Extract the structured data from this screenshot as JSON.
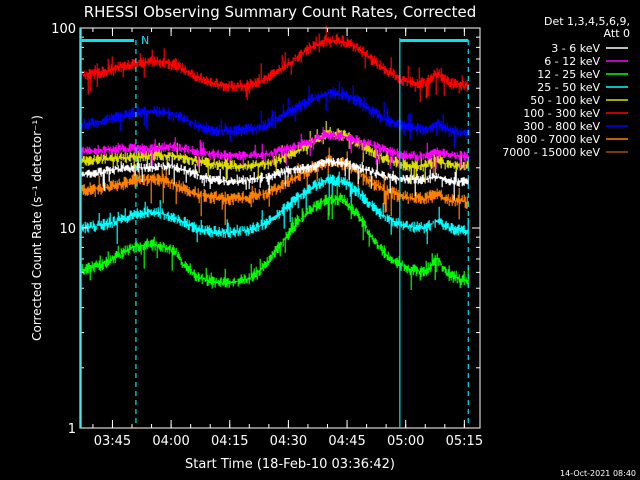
{
  "title": "RHESSI Observing Summary Count Rates, Corrected",
  "timestamp": "14-Oct-2021 08:40",
  "legend_header": [
    "Det 1,3,4,5,6,9,",
    "Att 0"
  ],
  "chart_data": {
    "type": "line",
    "title": "RHESSI Observing Summary Count Rates, Corrected",
    "xlabel": "Start Time (18-Feb-10 03:36:42)",
    "ylabel": "Corrected Count Rate (s⁻¹ detector⁻¹)",
    "y_scale": "log",
    "ylim": [
      1,
      100
    ],
    "y_ticks": [
      1,
      10,
      100
    ],
    "y_tick_labels": [
      "1",
      "10",
      "100"
    ],
    "xlim": [
      "03:36:42",
      "05:19:00"
    ],
    "x_ticks": [
      "03:45",
      "04:00",
      "04:15",
      "04:30",
      "04:45",
      "05:00",
      "05:15"
    ],
    "night_markers": {
      "times": [
        "03:51:00",
        "05:16:00"
      ],
      "color": "#00e5ee"
    },
    "bars": [
      {
        "from": "03:36:42",
        "to": "03:50:30",
        "label": "N"
      },
      {
        "from": "04:58:30",
        "to": "05:16:00",
        "label": ""
      }
    ],
    "series": [
      {
        "name": "3 - 6 keV",
        "color": "#ffffff",
        "width": 5,
        "points": [
          [
            "03:37",
            18.5
          ],
          [
            "03:42",
            19
          ],
          [
            "03:48",
            20
          ],
          [
            "03:54",
            20
          ],
          [
            "04:00",
            20.5
          ],
          [
            "04:05",
            19
          ],
          [
            "04:10",
            17.5
          ],
          [
            "04:15",
            17
          ],
          [
            "04:20",
            17.5
          ],
          [
            "04:25",
            18
          ],
          [
            "04:30",
            19.5
          ],
          [
            "04:35",
            20
          ],
          [
            "04:40",
            21.5
          ],
          [
            "04:45",
            21
          ],
          [
            "04:50",
            19.5
          ],
          [
            "04:55",
            18
          ],
          [
            "05:00",
            17.5
          ],
          [
            "05:05",
            17.5
          ],
          [
            "05:08",
            18
          ],
          [
            "05:12",
            17
          ],
          [
            "05:16",
            17
          ]
        ]
      },
      {
        "name": "6 - 12 keV",
        "color": "#ff00ff",
        "width": 5,
        "points": [
          [
            "03:37",
            24
          ],
          [
            "03:42",
            24.5
          ],
          [
            "03:48",
            25
          ],
          [
            "03:54",
            25
          ],
          [
            "04:00",
            25.5
          ],
          [
            "04:05",
            24.5
          ],
          [
            "04:10",
            23.5
          ],
          [
            "04:15",
            23
          ],
          [
            "04:20",
            23
          ],
          [
            "04:25",
            23.5
          ],
          [
            "04:30",
            25
          ],
          [
            "04:35",
            27
          ],
          [
            "04:40",
            29
          ],
          [
            "04:45",
            28.5
          ],
          [
            "04:50",
            26.5
          ],
          [
            "04:55",
            24.5
          ],
          [
            "05:00",
            23
          ],
          [
            "05:05",
            23
          ],
          [
            "05:08",
            24
          ],
          [
            "05:12",
            23
          ],
          [
            "05:16",
            23
          ]
        ]
      },
      {
        "name": "12 - 25 keV",
        "color": "#00ff00",
        "width": 6,
        "points": [
          [
            "03:37",
            6.2
          ],
          [
            "03:42",
            6.5
          ],
          [
            "03:46",
            7.2
          ],
          [
            "03:50",
            8
          ],
          [
            "03:54",
            8.3
          ],
          [
            "03:58",
            8.1
          ],
          [
            "04:01",
            7.6
          ],
          [
            "04:03",
            6.6
          ],
          [
            "04:06",
            5.8
          ],
          [
            "04:10",
            5.4
          ],
          [
            "04:15",
            5.3
          ],
          [
            "04:20",
            5.6
          ],
          [
            "04:24",
            6.5
          ],
          [
            "04:28",
            8.3
          ],
          [
            "04:32",
            10.5
          ],
          [
            "04:36",
            12.5
          ],
          [
            "04:40",
            14
          ],
          [
            "04:44",
            13.8
          ],
          [
            "04:48",
            11.5
          ],
          [
            "04:51",
            9.2
          ],
          [
            "04:55",
            7.3
          ],
          [
            "05:00",
            6.3
          ],
          [
            "05:05",
            6
          ],
          [
            "05:08",
            7
          ],
          [
            "05:11",
            5.8
          ],
          [
            "05:16",
            5.4
          ]
        ]
      },
      {
        "name": "25 - 50 keV",
        "color": "#00ffff",
        "width": 6,
        "points": [
          [
            "03:37",
            10
          ],
          [
            "03:42",
            10.3
          ],
          [
            "03:46",
            10.8
          ],
          [
            "03:50",
            11.5
          ],
          [
            "03:54",
            12
          ],
          [
            "03:58",
            11.8
          ],
          [
            "04:02",
            11
          ],
          [
            "04:06",
            10
          ],
          [
            "04:10",
            9.6
          ],
          [
            "04:15",
            9.5
          ],
          [
            "04:20",
            9.8
          ],
          [
            "04:24",
            10.5
          ],
          [
            "04:28",
            12
          ],
          [
            "04:32",
            14
          ],
          [
            "04:36",
            16
          ],
          [
            "04:40",
            17.5
          ],
          [
            "04:44",
            17
          ],
          [
            "04:48",
            15
          ],
          [
            "04:51",
            13
          ],
          [
            "04:55",
            11.2
          ],
          [
            "05:00",
            10.2
          ],
          [
            "05:05",
            10
          ],
          [
            "05:08",
            10.8
          ],
          [
            "05:11",
            10
          ],
          [
            "05:16",
            9.6
          ]
        ]
      },
      {
        "name": "50 - 100 keV",
        "color": "#dddd00",
        "width": 6,
        "points": [
          [
            "03:37",
            21.5
          ],
          [
            "03:42",
            22
          ],
          [
            "03:48",
            22.5
          ],
          [
            "03:54",
            23
          ],
          [
            "04:00",
            23
          ],
          [
            "04:05",
            22
          ],
          [
            "04:10",
            21
          ],
          [
            "04:15",
            20.5
          ],
          [
            "04:20",
            20.5
          ],
          [
            "04:25",
            21
          ],
          [
            "04:30",
            23
          ],
          [
            "04:35",
            26
          ],
          [
            "04:40",
            30
          ],
          [
            "04:45",
            29
          ],
          [
            "04:50",
            25
          ],
          [
            "04:55",
            22
          ],
          [
            "05:00",
            20.5
          ],
          [
            "05:05",
            20.5
          ],
          [
            "05:08",
            21.5
          ],
          [
            "05:12",
            20.5
          ],
          [
            "05:16",
            20.5
          ]
        ]
      },
      {
        "name": "100 - 300 keV",
        "color": "#ff0000",
        "width": 6,
        "points": [
          [
            "03:37",
            58
          ],
          [
            "03:42",
            60
          ],
          [
            "03:46",
            63
          ],
          [
            "03:50",
            66
          ],
          [
            "03:54",
            68
          ],
          [
            "03:58",
            67
          ],
          [
            "04:02",
            64
          ],
          [
            "04:06",
            58
          ],
          [
            "04:10",
            53
          ],
          [
            "04:15",
            51
          ],
          [
            "04:20",
            52
          ],
          [
            "04:24",
            55
          ],
          [
            "04:28",
            62
          ],
          [
            "04:32",
            71
          ],
          [
            "04:36",
            80
          ],
          [
            "04:40",
            87
          ],
          [
            "04:44",
            86
          ],
          [
            "04:48",
            79
          ],
          [
            "04:51",
            70
          ],
          [
            "04:55",
            61
          ],
          [
            "05:00",
            54
          ],
          [
            "05:05",
            53
          ],
          [
            "05:08",
            60
          ],
          [
            "05:11",
            53
          ],
          [
            "05:16",
            51
          ]
        ]
      },
      {
        "name": "300 - 800 keV",
        "color": "#0000ff",
        "width": 6,
        "points": [
          [
            "03:37",
            33
          ],
          [
            "03:42",
            34
          ],
          [
            "03:46",
            35.5
          ],
          [
            "03:50",
            37.5
          ],
          [
            "03:54",
            38.5
          ],
          [
            "03:58",
            38
          ],
          [
            "04:02",
            36
          ],
          [
            "04:06",
            33
          ],
          [
            "04:10",
            31
          ],
          [
            "04:15",
            30.5
          ],
          [
            "04:20",
            31
          ],
          [
            "04:24",
            32.5
          ],
          [
            "04:28",
            36
          ],
          [
            "04:32",
            40
          ],
          [
            "04:36",
            44
          ],
          [
            "04:40",
            47
          ],
          [
            "04:44",
            46.5
          ],
          [
            "04:48",
            43
          ],
          [
            "04:51",
            38.5
          ],
          [
            "04:55",
            34.5
          ],
          [
            "05:00",
            32
          ],
          [
            "05:05",
            31
          ],
          [
            "05:08",
            33.5
          ],
          [
            "05:11",
            30.5
          ],
          [
            "05:16",
            30
          ]
        ]
      },
      {
        "name": "800 - 7000 keV",
        "color": "#ff8000",
        "width": 7,
        "points": [
          [
            "03:37",
            15.5
          ],
          [
            "03:42",
            15.8
          ],
          [
            "03:46",
            16.3
          ],
          [
            "03:50",
            17
          ],
          [
            "03:54",
            17.5
          ],
          [
            "03:58",
            17.2
          ],
          [
            "04:02",
            16.3
          ],
          [
            "04:06",
            15
          ],
          [
            "04:10",
            14.2
          ],
          [
            "04:15",
            14
          ],
          [
            "04:20",
            14.2
          ],
          [
            "04:24",
            14.8
          ],
          [
            "04:28",
            16.2
          ],
          [
            "04:32",
            18
          ],
          [
            "04:36",
            20
          ],
          [
            "04:40",
            21.5
          ],
          [
            "04:44",
            21
          ],
          [
            "04:48",
            19
          ],
          [
            "04:51",
            17
          ],
          [
            "04:55",
            15.3
          ],
          [
            "05:00",
            14.2
          ],
          [
            "05:05",
            14
          ],
          [
            "05:08",
            14.8
          ],
          [
            "05:11",
            13.8
          ],
          [
            "05:16",
            13.5
          ]
        ]
      },
      {
        "name": "7000 - 15000 keV",
        "color": "#a05000",
        "width": 2,
        "points": []
      }
    ]
  }
}
